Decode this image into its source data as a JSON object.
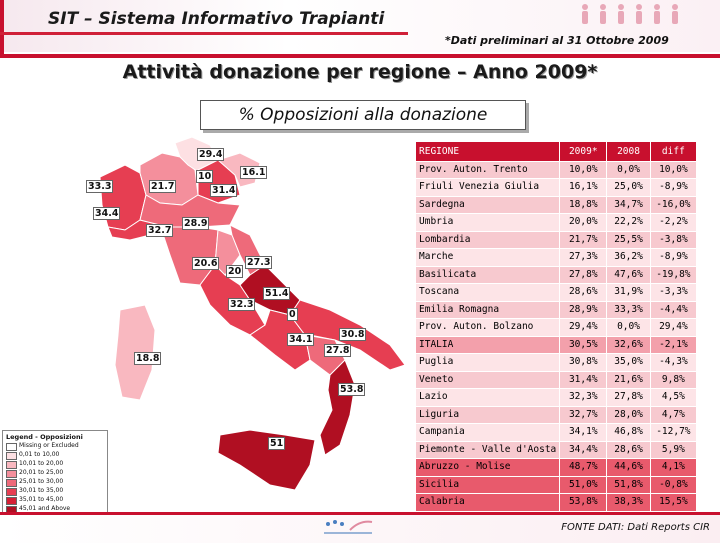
{
  "header": {
    "title": "SIT – Sistema Informativo Trapianti",
    "note": "*Dati preliminari al 31 Ottobre 2009"
  },
  "main_title": "Attività donazione per regione – Anno 2009*",
  "subtitle": "% Opposizioni alla donazione",
  "table": {
    "headers": [
      "REGIONE",
      "2009*",
      "2008",
      "diff"
    ],
    "rows": [
      {
        "region": "Prov. Auton. Trento",
        "y2009": "10,0%",
        "y2008": "0,0%",
        "diff": "10,0%"
      },
      {
        "region": "Friuli Venezia Giulia",
        "y2009": "16,1%",
        "y2008": "25,0%",
        "diff": "-8,9%"
      },
      {
        "region": "Sardegna",
        "y2009": "18,8%",
        "y2008": "34,7%",
        "diff": "-16,0%"
      },
      {
        "region": "Umbria",
        "y2009": "20,0%",
        "y2008": "22,2%",
        "diff": "-2,2%"
      },
      {
        "region": "Lombardia",
        "y2009": "21,7%",
        "y2008": "25,5%",
        "diff": "-3,8%"
      },
      {
        "region": "Marche",
        "y2009": "27,3%",
        "y2008": "36,2%",
        "diff": "-8,9%"
      },
      {
        "region": "Basilicata",
        "y2009": "27,8%",
        "y2008": "47,6%",
        "diff": "-19,8%"
      },
      {
        "region": "Toscana",
        "y2009": "28,6%",
        "y2008": "31,9%",
        "diff": "-3,3%"
      },
      {
        "region": "Emilia Romagna",
        "y2009": "28,9%",
        "y2008": "33,3%",
        "diff": "-4,4%"
      },
      {
        "region": "Prov. Auton. Bolzano",
        "y2009": "29,4%",
        "y2008": "0,0%",
        "diff": "29,4%"
      },
      {
        "region": "ITALIA",
        "y2009": "30,5%",
        "y2008": "32,6%",
        "diff": "-2,1%"
      },
      {
        "region": "Puglia",
        "y2009": "30,8%",
        "y2008": "35,0%",
        "diff": "-4,3%"
      },
      {
        "region": "Veneto",
        "y2009": "31,4%",
        "y2008": "21,6%",
        "diff": "9,8%"
      },
      {
        "region": "Lazio",
        "y2009": "32,3%",
        "y2008": "27,8%",
        "diff": "4,5%"
      },
      {
        "region": "Liguria",
        "y2009": "32,7%",
        "y2008": "28,0%",
        "diff": "4,7%"
      },
      {
        "region": "Campania",
        "y2009": "34,1%",
        "y2008": "46,8%",
        "diff": "-12,7%"
      },
      {
        "region": "Piemonte - Valle d'Aosta",
        "y2009": "34,4%",
        "y2008": "28,6%",
        "diff": "5,9%"
      },
      {
        "region": "Abruzzo - Molise",
        "y2009": "48,7%",
        "y2008": "44,6%",
        "diff": "4,1%"
      },
      {
        "region": "Sicilia",
        "y2009": "51,0%",
        "y2008": "51,8%",
        "diff": "-0,8%"
      },
      {
        "region": "Calabria",
        "y2009": "53,8%",
        "y2008": "38,3%",
        "diff": "15,5%"
      }
    ]
  },
  "map_labels": [
    "29.4",
    "16.1",
    "10",
    "33.3",
    "21.7",
    "31.4",
    "34.4",
    "28.9",
    "32.7",
    "20.6",
    "20",
    "27.3",
    "51.4",
    "32.3",
    "0",
    "30.8",
    "34.1",
    "27.8",
    "18.8",
    "53.8",
    "51"
  ],
  "legend": {
    "title": "Legend - Opposizioni",
    "items": [
      {
        "label": "Missing or Excluded",
        "color": "#ffffff"
      },
      {
        "label": "0,01 to 10,00",
        "color": "#fde0e3"
      },
      {
        "label": "10,01 to 20,00",
        "color": "#f9b8c0"
      },
      {
        "label": "20,01 to 25,00",
        "color": "#f48f9c"
      },
      {
        "label": "25,01 to 30,00",
        "color": "#ee6a7a"
      },
      {
        "label": "30,01 to 35,00",
        "color": "#e63e52"
      },
      {
        "label": "35,01 to 45,00",
        "color": "#d61f35"
      },
      {
        "label": "45,01 and Above",
        "color": "#b00f22"
      }
    ]
  },
  "source": "FONTE DATI: Dati Reports CIR",
  "colors": {
    "accent": "#c8102e"
  }
}
